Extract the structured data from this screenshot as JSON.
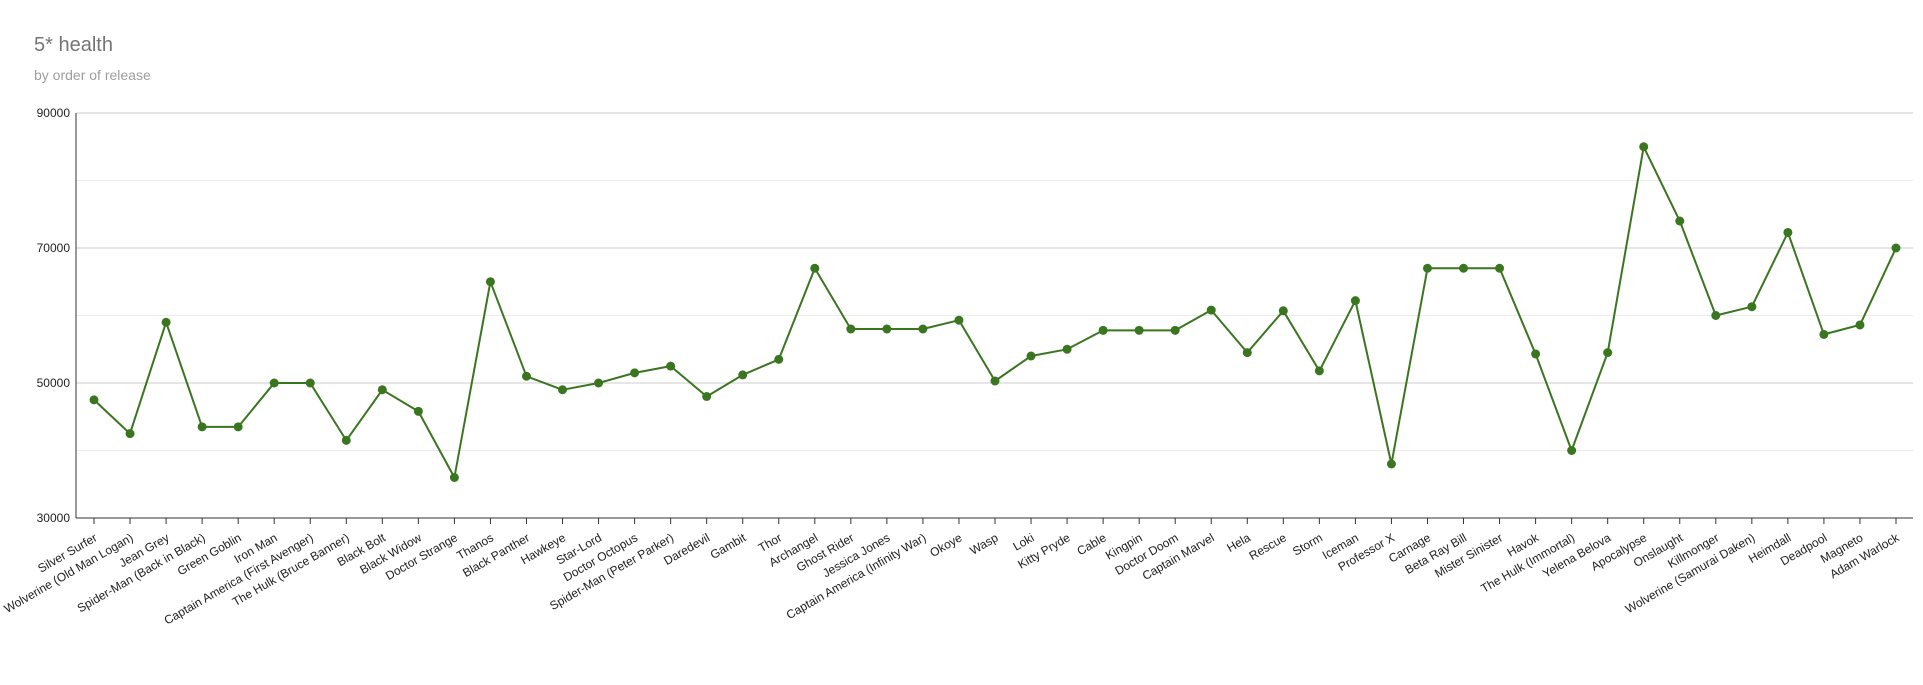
{
  "chart_data": {
    "type": "line",
    "title": "5* health",
    "subtitle": "by order of release",
    "xlabel": "",
    "ylabel": "",
    "ylim": [
      30000,
      90000
    ],
    "yticks": [
      "30000",
      "50000",
      "70000",
      "90000"
    ],
    "grid": true,
    "legend": "none",
    "line_color": "#3a761f",
    "categories": [
      "Silver Surfer",
      "Wolverine (Old Man Logan)",
      "Jean Grey",
      "Spider-Man (Back in Black)",
      "Green Goblin",
      "Iron Man",
      "Captain America (First Avenger)",
      "The Hulk (Bruce Banner)",
      "Black Bolt",
      "Black Widow",
      "Doctor Strange",
      "Thanos",
      "Black Panther",
      "Hawkeye",
      "Star-Lord",
      "Doctor Octopus",
      "Spider-Man (Peter Parker)",
      "Daredevil",
      "Gambit",
      "Thor",
      "Archangel",
      "Ghost Rider",
      "Jessica Jones",
      "Captain America (Infinity War)",
      "Okoye",
      "Wasp",
      "Loki",
      "Kitty Pryde",
      "Cable",
      "Kingpin",
      "Doctor Doom",
      "Captain Marvel",
      "Hela",
      "Rescue",
      "Storm",
      "Iceman",
      "Professor X",
      "Carnage",
      "Beta Ray Bill",
      "Mister Sinister",
      "Havok",
      "The Hulk (Immortal)",
      "Yelena Belova",
      "Apocalypse",
      "Onslaught",
      "Killmonger",
      "Wolverine (Samurai Daken)",
      "Heimdall",
      "Deadpool",
      "Magneto",
      "Adam Warlock"
    ],
    "values": [
      47500,
      42500,
      59000,
      43500,
      43500,
      50000,
      50000,
      41500,
      49000,
      45800,
      36000,
      65000,
      51000,
      49000,
      50000,
      51500,
      52500,
      48000,
      51200,
      53500,
      67000,
      58000,
      58000,
      58000,
      59300,
      50300,
      54000,
      55000,
      57800,
      57800,
      57800,
      60800,
      54500,
      60700,
      51800,
      62200,
      38000,
      67000,
      67000,
      67000,
      54300,
      40000,
      54500,
      85000,
      74000,
      60000,
      61300,
      72300,
      57200,
      58600,
      70000
    ]
  }
}
